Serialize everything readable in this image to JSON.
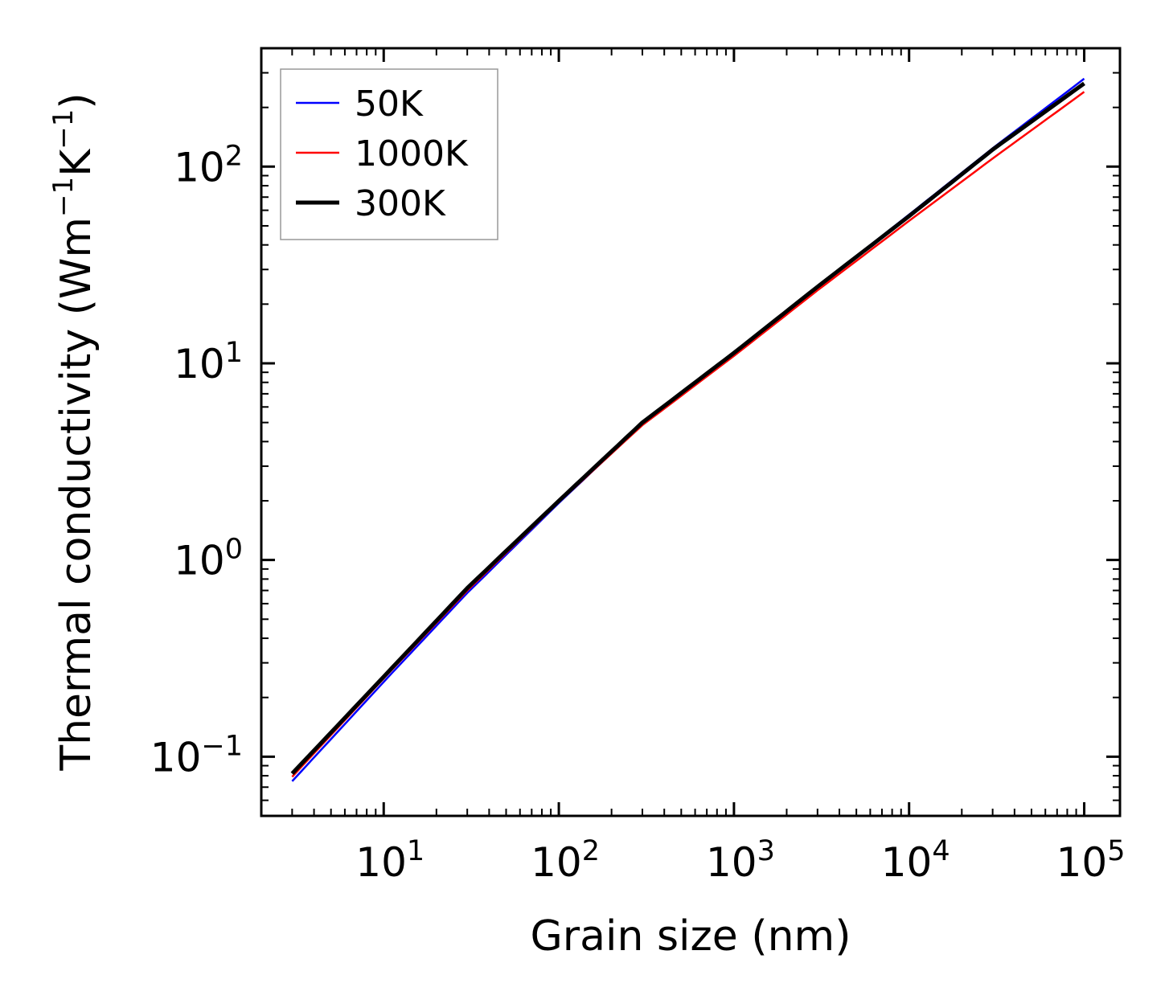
{
  "chart_data": {
    "type": "line",
    "title": "",
    "xlabel": "Grain size (nm)",
    "ylabel": "Thermal conductivity (Wm",
    "ylabel_unit_parts": [
      "Wm",
      "−1",
      "K",
      "−1",
      ")"
    ],
    "xscale": "log",
    "yscale": "log",
    "xlim": [
      2,
      160000
    ],
    "ylim": [
      0.05,
      400
    ],
    "x_major_ticks": [
      {
        "value": 10,
        "base": "10",
        "exp": "1"
      },
      {
        "value": 100,
        "base": "10",
        "exp": "2"
      },
      {
        "value": 1000,
        "base": "10",
        "exp": "3"
      },
      {
        "value": 10000,
        "base": "10",
        "exp": "4"
      },
      {
        "value": 100000,
        "base": "10",
        "exp": "5"
      }
    ],
    "y_major_ticks": [
      {
        "value": 0.1,
        "base": "10",
        "exp": "−1"
      },
      {
        "value": 1,
        "base": "10",
        "exp": "0"
      },
      {
        "value": 10,
        "base": "10",
        "exp": "1"
      },
      {
        "value": 100,
        "base": "10",
        "exp": "2"
      }
    ],
    "legend_position": "top-left",
    "series": [
      {
        "name": "50K",
        "color": "#0000ff",
        "linewidth": 2.5,
        "x": [
          3,
          10,
          30,
          100,
          300,
          1000,
          3000,
          10000,
          30000,
          100000
        ],
        "y": [
          0.075,
          0.24,
          0.68,
          1.95,
          4.9,
          11.2,
          24.5,
          57,
          124,
          280
        ]
      },
      {
        "name": "1000K",
        "color": "#ff0000",
        "linewidth": 2.5,
        "x": [
          3,
          10,
          30,
          100,
          300,
          1000,
          3000,
          10000,
          30000,
          100000
        ],
        "y": [
          0.079,
          0.25,
          0.7,
          1.97,
          4.85,
          10.9,
          23.5,
          53,
          110,
          240
        ]
      },
      {
        "name": "300K",
        "color": "#000000",
        "linewidth": 5,
        "x": [
          3,
          10,
          30,
          100,
          300,
          1000,
          3000,
          10000,
          30000,
          100000
        ],
        "y": [
          0.082,
          0.255,
          0.72,
          2.0,
          5.0,
          11.3,
          24.5,
          56,
          122,
          265
        ]
      }
    ]
  }
}
